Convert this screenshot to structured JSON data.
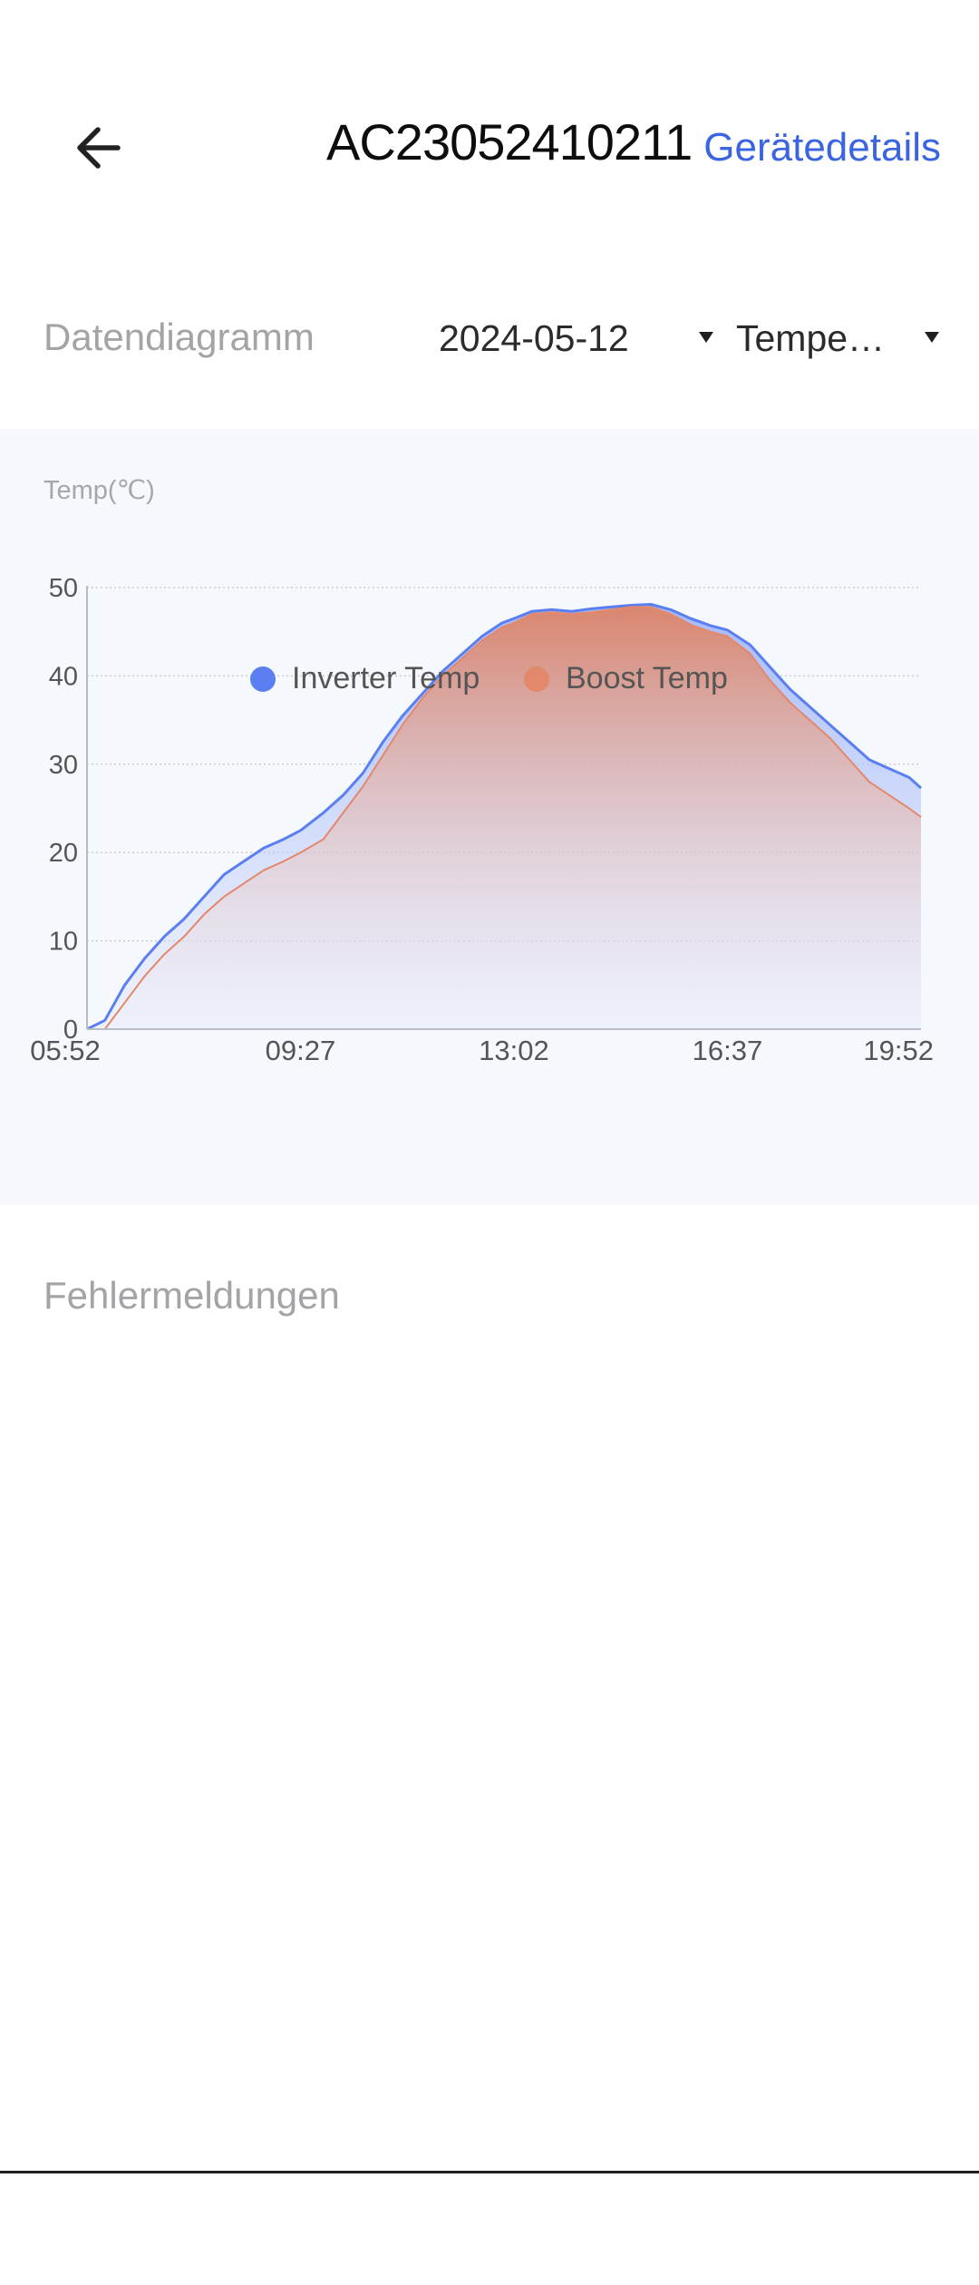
{
  "header": {
    "title": "AC23052410211",
    "details_link": "Gerätedetails",
    "back_icon": "arrow-left-icon"
  },
  "controls": {
    "section_title": "Datendiagramm",
    "date_value": "2024-05-12",
    "type_value": "Tempe…",
    "caret_icon": "caret-down-icon"
  },
  "faults": {
    "title": "Fehlermeldungen"
  },
  "colors": {
    "accent": "#3b64e0",
    "inverter": "#5b7ff0",
    "boost": "#e3886b",
    "panel_bg": "#f5f8fd"
  },
  "chart_data": {
    "type": "area",
    "ylabel": "Temp(℃)",
    "xlabel": "",
    "x_ticks": [
      "05:52",
      "09:27",
      "13:02",
      "16:37",
      "19:52"
    ],
    "x_tick_minutes": [
      352,
      567,
      782,
      997,
      1192
    ],
    "y_ticks": [
      0,
      10,
      20,
      30,
      40,
      50
    ],
    "ylim": [
      0,
      50
    ],
    "grid": "horizontal-dotted",
    "legend_position": "bottom",
    "x": [
      "05:52",
      "06:10",
      "06:30",
      "06:50",
      "07:10",
      "07:30",
      "07:50",
      "08:10",
      "08:30",
      "08:50",
      "09:10",
      "09:27",
      "09:50",
      "10:10",
      "10:30",
      "10:50",
      "11:10",
      "11:30",
      "11:50",
      "12:10",
      "12:30",
      "12:50",
      "13:02",
      "13:20",
      "13:40",
      "14:00",
      "14:20",
      "14:40",
      "15:00",
      "15:20",
      "15:40",
      "16:00",
      "16:20",
      "16:37",
      "17:00",
      "17:20",
      "17:40",
      "18:00",
      "18:20",
      "18:40",
      "19:00",
      "19:20",
      "19:40",
      "19:52"
    ],
    "series": [
      {
        "name": "Inverter Temp",
        "color": "#5b7ff0",
        "values": [
          0,
          1,
          5,
          8,
          10.5,
          12.5,
          15,
          17.5,
          19,
          20.5,
          21.5,
          22.5,
          24.5,
          26.5,
          29,
          32.5,
          35.5,
          38,
          40.5,
          42.5,
          44.5,
          46,
          46.5,
          47.3,
          47.5,
          47.3,
          47.6,
          47.8,
          48,
          48.1,
          47.5,
          46.5,
          45.7,
          45.2,
          43.5,
          41,
          38.5,
          36.5,
          34.5,
          32.5,
          30.5,
          29.5,
          28.5,
          27.3
        ]
      },
      {
        "name": "Boost Temp",
        "color": "#e3886b",
        "values": [
          0,
          0,
          3,
          6,
          8.5,
          10.5,
          13,
          15,
          16.5,
          18,
          19,
          20,
          21.5,
          24.5,
          27.5,
          31,
          34.5,
          37.5,
          40,
          42,
          44,
          45.5,
          46,
          47,
          47.2,
          47,
          47.2,
          47.5,
          47.8,
          47.8,
          47,
          45.8,
          45,
          44.5,
          42.5,
          39.5,
          37,
          35,
          33,
          30.5,
          28,
          26.5,
          25,
          24
        ]
      }
    ]
  }
}
